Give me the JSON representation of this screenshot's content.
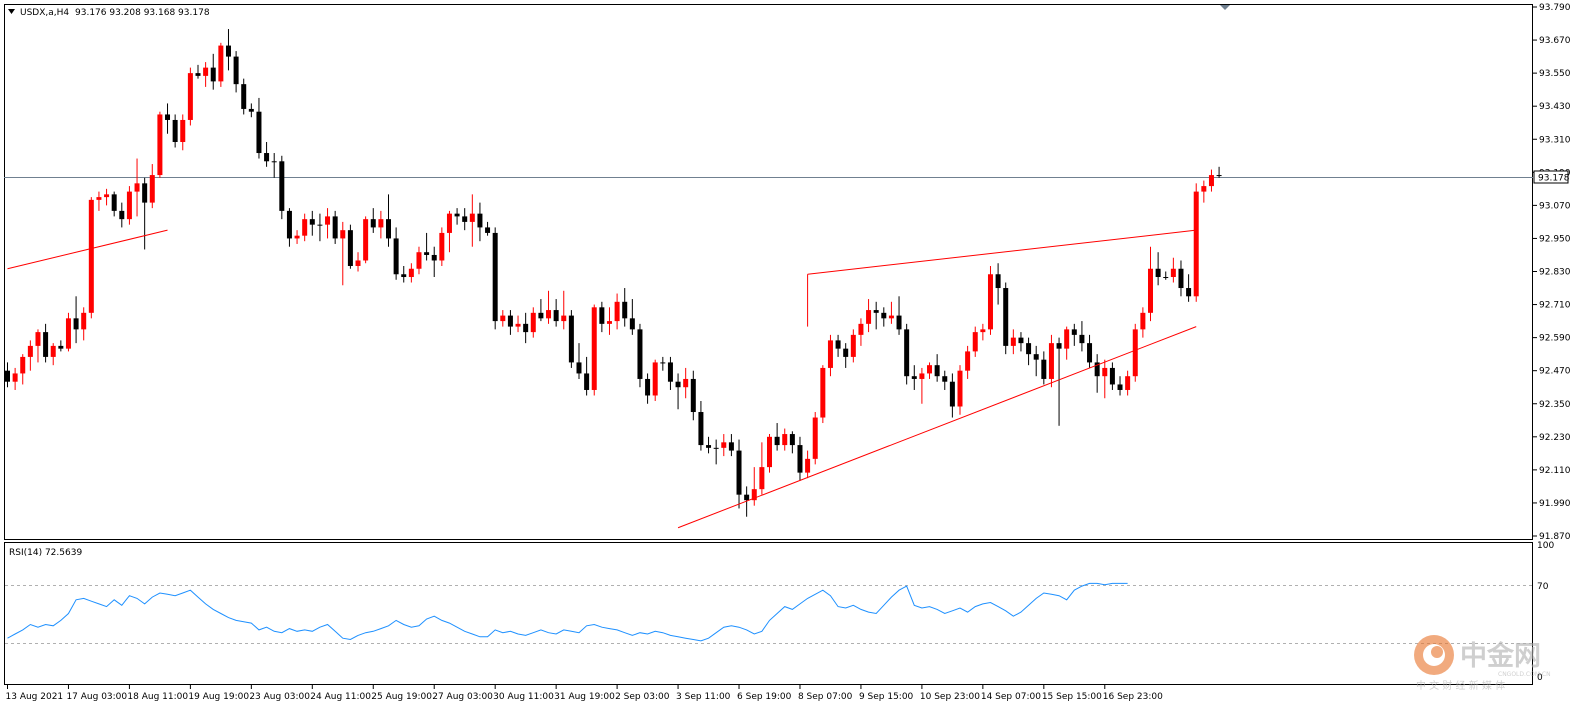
{
  "chart_data": [
    {
      "type": "candlestick",
      "symbol_header": "USDX,a,H4",
      "ohlc_header": "93.176 93.208 93.168 93.178",
      "current_price": 93.178,
      "current_price_label": "93.178",
      "y_range": [
        91.87,
        93.79
      ],
      "y_ticks": [
        "93.790",
        "93.670",
        "93.550",
        "93.430",
        "93.310",
        "93.190",
        "93.070",
        "92.950",
        "92.830",
        "92.710",
        "92.590",
        "92.470",
        "92.350",
        "92.230",
        "92.110",
        "91.990",
        "91.870"
      ],
      "x_labels": [
        "13 Aug 2021",
        "17 Aug 03:00",
        "18 Aug 11:00",
        "19 Aug 19:00",
        "23 Aug 03:00",
        "24 Aug 11:00",
        "25 Aug 19:00",
        "27 Aug 03:00",
        "30 Aug 11:00",
        "31 Aug 19:00",
        "2 Sep 03:00",
        "3 Sep 11:00",
        "6 Sep 19:00",
        "8 Sep 07:00",
        "9 Sep 15:00",
        "10 Sep 23:00",
        "14 Sep 07:00",
        "15 Sep 15:00",
        "16 Sep 23:00"
      ],
      "x_label_bars": [
        0,
        8,
        16,
        24,
        32,
        40,
        48,
        56,
        64,
        72,
        80,
        88,
        96,
        104,
        112,
        120,
        128,
        136,
        144
      ],
      "bull_color": "#ff0000",
      "bear_color": "#000000",
      "doji_color": "#00cc00",
      "trendline_color": "#ff0000",
      "candles": [
        [
          92.47,
          92.5,
          92.41,
          92.43
        ],
        [
          92.43,
          92.48,
          92.4,
          92.46
        ],
        [
          92.46,
          92.53,
          92.42,
          92.52
        ],
        [
          92.52,
          92.58,
          92.47,
          92.56
        ],
        [
          92.56,
          92.62,
          92.5,
          92.61
        ],
        [
          92.61,
          92.64,
          92.5,
          92.52
        ],
        [
          92.52,
          92.57,
          92.49,
          92.56
        ],
        [
          92.56,
          92.58,
          92.54,
          92.55
        ],
        [
          92.55,
          92.68,
          92.54,
          92.66
        ],
        [
          92.66,
          92.74,
          92.57,
          92.62
        ],
        [
          92.62,
          92.7,
          92.58,
          92.68
        ],
        [
          92.68,
          93.1,
          92.66,
          93.09
        ],
        [
          93.09,
          93.12,
          93.05,
          93.1
        ],
        [
          93.1,
          93.13,
          93.07,
          93.11
        ],
        [
          93.11,
          93.12,
          93.03,
          93.05
        ],
        [
          93.05,
          93.08,
          92.99,
          93.02
        ],
        [
          93.02,
          93.14,
          93.0,
          93.12
        ],
        [
          93.12,
          93.24,
          93.03,
          93.15
        ],
        [
          93.15,
          93.17,
          92.91,
          93.08
        ],
        [
          93.08,
          93.22,
          93.06,
          93.18
        ],
        [
          93.18,
          93.41,
          93.17,
          93.4
        ],
        [
          93.4,
          93.44,
          93.33,
          93.38
        ],
        [
          93.38,
          93.4,
          93.28,
          93.3
        ],
        [
          93.3,
          93.4,
          93.27,
          93.38
        ],
        [
          93.38,
          93.57,
          93.36,
          93.55
        ],
        [
          93.55,
          93.58,
          93.53,
          93.54
        ],
        [
          93.54,
          93.59,
          93.5,
          93.57
        ],
        [
          93.57,
          93.62,
          93.49,
          93.52
        ],
        [
          93.52,
          93.66,
          93.5,
          93.65
        ],
        [
          93.65,
          93.71,
          93.56,
          93.61
        ],
        [
          93.61,
          93.63,
          93.48,
          93.51
        ],
        [
          93.51,
          93.53,
          93.4,
          93.42
        ],
        [
          93.42,
          93.44,
          93.39,
          93.41
        ],
        [
          93.41,
          93.46,
          93.24,
          93.26
        ],
        [
          93.26,
          93.3,
          93.21,
          93.23
        ],
        [
          93.23,
          93.26,
          93.17,
          93.23
        ],
        [
          93.23,
          93.25,
          93.02,
          93.05
        ],
        [
          93.05,
          93.06,
          92.92,
          92.95
        ],
        [
          92.95,
          92.98,
          92.93,
          92.96
        ],
        [
          92.96,
          93.04,
          92.94,
          93.02
        ],
        [
          93.02,
          93.05,
          92.96,
          93.0
        ],
        [
          93.0,
          93.04,
          92.94,
          93.0
        ],
        [
          93.0,
          93.06,
          92.95,
          93.03
        ],
        [
          93.03,
          93.05,
          92.93,
          92.95
        ],
        [
          92.95,
          93.01,
          92.78,
          92.98
        ],
        [
          92.98,
          93.0,
          92.84,
          92.85
        ],
        [
          92.85,
          92.9,
          92.83,
          92.87
        ],
        [
          92.87,
          93.03,
          92.86,
          93.02
        ],
        [
          93.02,
          93.06,
          92.97,
          92.99
        ],
        [
          92.99,
          93.05,
          92.95,
          93.02
        ],
        [
          93.02,
          93.11,
          92.92,
          92.95
        ],
        [
          92.95,
          92.99,
          92.8,
          92.82
        ],
        [
          92.82,
          92.85,
          92.79,
          92.81
        ],
        [
          92.81,
          92.86,
          92.79,
          92.84
        ],
        [
          92.84,
          92.92,
          92.82,
          92.9
        ],
        [
          92.9,
          92.97,
          92.87,
          92.89
        ],
        [
          92.89,
          92.92,
          92.81,
          92.87
        ],
        [
          92.87,
          92.99,
          92.85,
          92.97
        ],
        [
          92.97,
          93.05,
          92.9,
          93.04
        ],
        [
          93.04,
          93.06,
          93.0,
          93.03
        ],
        [
          93.03,
          93.06,
          92.98,
          93.01
        ],
        [
          93.01,
          93.11,
          92.92,
          93.04
        ],
        [
          93.04,
          93.08,
          92.94,
          92.99
        ],
        [
          92.99,
          93.01,
          92.96,
          92.97
        ],
        [
          92.97,
          92.99,
          92.62,
          92.65
        ],
        [
          92.65,
          92.69,
          92.63,
          92.67
        ],
        [
          92.67,
          92.69,
          92.6,
          92.63
        ],
        [
          92.63,
          92.67,
          92.61,
          92.64
        ],
        [
          92.64,
          92.68,
          92.57,
          92.61
        ],
        [
          92.61,
          92.7,
          92.59,
          92.68
        ],
        [
          92.68,
          92.73,
          92.65,
          92.66
        ],
        [
          92.66,
          92.76,
          92.64,
          92.69
        ],
        [
          92.69,
          92.73,
          92.63,
          92.65
        ],
        [
          92.65,
          92.76,
          92.62,
          92.67
        ],
        [
          92.67,
          92.69,
          92.48,
          92.5
        ],
        [
          92.5,
          92.57,
          92.44,
          92.46
        ],
        [
          92.46,
          92.52,
          92.38,
          92.4
        ],
        [
          92.4,
          92.71,
          92.38,
          92.7
        ],
        [
          92.7,
          92.72,
          92.61,
          92.64
        ],
        [
          92.64,
          92.7,
          92.6,
          92.65
        ],
        [
          92.65,
          92.75,
          92.62,
          92.72
        ],
        [
          92.72,
          92.77,
          92.63,
          92.66
        ],
        [
          92.66,
          92.73,
          92.6,
          92.62
        ],
        [
          92.62,
          92.64,
          92.41,
          92.44
        ],
        [
          92.44,
          92.46,
          92.35,
          92.38
        ],
        [
          92.38,
          92.51,
          92.36,
          92.5
        ],
        [
          92.5,
          92.52,
          92.47,
          92.5
        ],
        [
          92.5,
          92.52,
          92.4,
          92.43
        ],
        [
          92.43,
          92.46,
          92.33,
          92.41
        ],
        [
          92.41,
          92.48,
          92.37,
          92.44
        ],
        [
          92.44,
          92.47,
          92.29,
          92.32
        ],
        [
          92.32,
          92.36,
          92.18,
          92.2
        ],
        [
          92.2,
          92.23,
          92.17,
          92.19
        ],
        [
          92.19,
          92.22,
          92.13,
          92.19
        ],
        [
          92.19,
          92.24,
          92.16,
          92.21
        ],
        [
          92.21,
          92.24,
          92.16,
          92.18
        ],
        [
          92.18,
          92.22,
          91.97,
          92.02
        ],
        [
          92.02,
          92.05,
          91.94,
          92.0
        ],
        [
          92.0,
          92.12,
          91.98,
          92.04
        ],
        [
          92.04,
          92.21,
          92.02,
          92.12
        ],
        [
          92.12,
          92.24,
          92.1,
          92.23
        ],
        [
          92.23,
          92.28,
          92.18,
          92.2
        ],
        [
          92.2,
          92.26,
          92.18,
          92.24
        ],
        [
          92.24,
          92.25,
          92.17,
          92.2
        ],
        [
          92.2,
          92.23,
          92.07,
          92.1
        ],
        [
          92.1,
          92.18,
          92.08,
          92.15
        ],
        [
          92.15,
          92.32,
          92.13,
          92.3
        ],
        [
          92.3,
          92.49,
          92.28,
          92.48
        ],
        [
          92.48,
          92.6,
          92.45,
          92.58
        ],
        [
          92.58,
          92.6,
          92.52,
          92.55
        ],
        [
          92.55,
          92.57,
          92.48,
          92.52
        ],
        [
          92.52,
          92.62,
          92.5,
          92.6
        ],
        [
          92.6,
          92.66,
          92.56,
          92.64
        ],
        [
          92.64,
          92.73,
          92.61,
          92.69
        ],
        [
          92.69,
          92.72,
          92.62,
          92.68
        ],
        [
          92.68,
          92.7,
          92.63,
          92.66
        ],
        [
          92.66,
          92.72,
          92.64,
          92.67
        ],
        [
          92.67,
          92.74,
          92.6,
          92.62
        ],
        [
          92.62,
          92.64,
          92.42,
          92.45
        ],
        [
          92.45,
          92.49,
          92.4,
          92.44
        ],
        [
          92.44,
          92.48,
          92.35,
          92.46
        ],
        [
          92.46,
          92.5,
          92.44,
          92.49
        ],
        [
          92.49,
          92.53,
          92.43,
          92.45
        ],
        [
          92.45,
          92.47,
          92.4,
          92.43
        ],
        [
          92.43,
          92.46,
          92.3,
          92.34
        ],
        [
          92.34,
          92.49,
          92.31,
          92.47
        ],
        [
          92.47,
          92.56,
          92.44,
          92.54
        ],
        [
          92.54,
          92.63,
          92.52,
          92.61
        ],
        [
          92.61,
          92.64,
          92.58,
          92.62
        ],
        [
          92.62,
          92.85,
          92.6,
          92.82
        ],
        [
          92.82,
          92.86,
          92.71,
          92.77
        ],
        [
          92.77,
          92.79,
          92.53,
          92.56
        ],
        [
          92.56,
          92.62,
          92.53,
          92.59
        ],
        [
          92.59,
          92.61,
          92.54,
          92.57
        ],
        [
          92.57,
          92.59,
          92.49,
          92.53
        ],
        [
          92.53,
          92.56,
          92.45,
          92.51
        ],
        [
          92.51,
          92.54,
          92.42,
          92.44
        ],
        [
          92.44,
          92.6,
          92.41,
          92.57
        ],
        [
          92.57,
          92.59,
          92.27,
          92.55
        ],
        [
          92.55,
          92.63,
          92.51,
          92.62
        ],
        [
          92.62,
          92.64,
          92.56,
          92.6
        ],
        [
          92.6,
          92.65,
          92.54,
          92.57
        ],
        [
          92.57,
          92.6,
          92.48,
          92.5
        ],
        [
          92.5,
          92.53,
          92.39,
          92.45
        ],
        [
          92.45,
          92.51,
          92.37,
          92.48
        ],
        [
          92.48,
          92.5,
          92.4,
          92.42
        ],
        [
          92.42,
          92.45,
          92.38,
          92.4
        ],
        [
          92.4,
          92.47,
          92.38,
          92.45
        ],
        [
          92.45,
          92.64,
          92.43,
          92.62
        ],
        [
          92.62,
          92.7,
          92.59,
          92.68
        ],
        [
          92.68,
          92.92,
          92.65,
          92.84
        ],
        [
          92.84,
          92.9,
          92.78,
          92.81
        ],
        [
          92.81,
          92.83,
          92.8,
          92.81
        ],
        [
          92.81,
          92.88,
          92.79,
          92.84
        ],
        [
          92.84,
          92.87,
          92.74,
          92.77
        ],
        [
          92.77,
          92.82,
          92.72,
          92.74
        ],
        [
          92.74,
          93.15,
          92.72,
          93.12
        ],
        [
          93.12,
          93.16,
          93.08,
          93.14
        ],
        [
          93.14,
          93.2,
          93.12,
          93.18
        ],
        [
          93.18,
          93.21,
          93.17,
          93.18
        ]
      ],
      "trendlines": [
        {
          "from": [
            0,
            92.84
          ],
          "to": [
            21,
            92.98
          ]
        },
        {
          "from": [
            88,
            91.9
          ],
          "to": [
            156,
            92.63
          ]
        },
        {
          "from": [
            105,
            92.82
          ],
          "to": [
            156,
            92.98
          ]
        },
        {
          "from": [
            105,
            92.82
          ],
          "to": [
            105,
            92.63
          ]
        }
      ]
    },
    {
      "type": "line",
      "name": "RSI(14)",
      "label": "RSI(14) 72.5639",
      "ylim": [
        0,
        100
      ],
      "y_ticks": [
        "100",
        "70",
        "0"
      ],
      "levels": [
        70,
        30
      ],
      "line_color": "#1e90ff",
      "values": [
        32,
        35,
        38,
        42,
        40,
        42,
        41,
        45,
        50,
        60,
        61,
        59,
        57,
        55,
        60,
        56,
        63,
        61,
        57,
        62,
        65,
        64,
        63,
        65,
        67,
        62,
        57,
        53,
        50,
        47,
        45,
        44,
        43,
        38,
        40,
        37,
        36,
        39,
        37,
        38,
        37,
        40,
        42,
        37,
        32,
        31,
        34,
        36,
        37,
        39,
        41,
        45,
        42,
        40,
        41,
        46,
        48,
        45,
        43,
        40,
        37,
        35,
        33,
        33,
        38,
        36,
        37,
        35,
        34,
        36,
        38,
        36,
        35,
        38,
        37,
        36,
        41,
        42,
        40,
        39,
        38,
        36,
        34,
        36,
        35,
        37,
        36,
        34,
        33,
        32,
        31,
        30,
        32,
        36,
        40,
        41,
        40,
        38,
        35,
        37,
        45,
        50,
        55,
        53,
        57,
        61,
        64,
        67,
        63,
        55,
        54,
        56,
        53,
        51,
        50,
        56,
        62,
        67,
        70,
        56,
        54,
        55,
        53,
        50,
        52,
        54,
        51,
        55,
        57,
        58,
        55,
        52,
        48,
        51,
        56,
        61,
        65,
        64,
        63,
        60,
        67,
        70,
        72,
        72,
        71,
        72,
        72,
        72
      ],
      "watermark_main": "中金网",
      "watermark_sub": "CNGOLD.COM.CN",
      "watermark_cn": "中 文 财 经 新 媒 体"
    }
  ]
}
